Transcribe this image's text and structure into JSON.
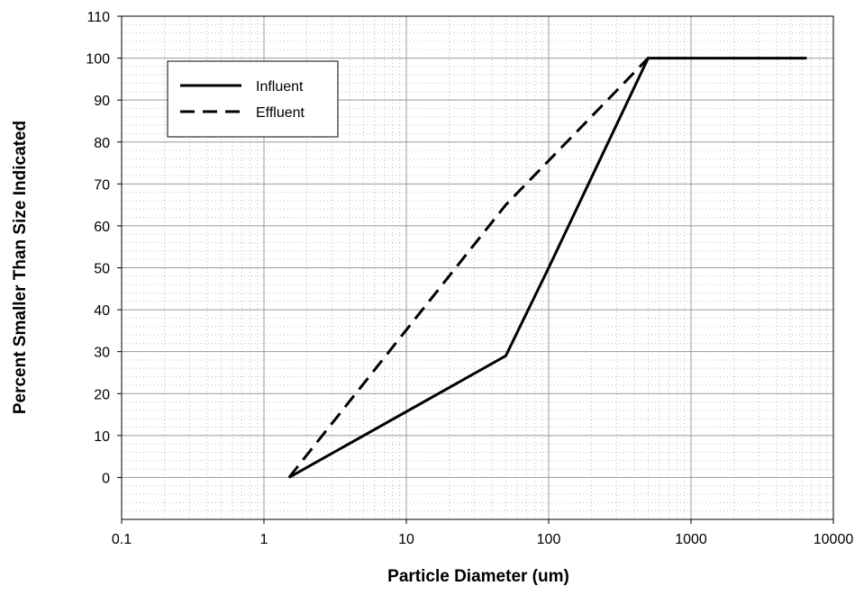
{
  "chart_data": {
    "type": "line",
    "title": "",
    "xlabel": "Particle Diameter (um)",
    "ylabel": "Percent Smaller Than Size Indicated",
    "x_scale": "log",
    "xlim": [
      0.1,
      10000
    ],
    "ylim": [
      -10,
      110
    ],
    "x_ticks": [
      0.1,
      1,
      10,
      100,
      1000,
      10000
    ],
    "x_tick_labels": [
      "0.1",
      "1",
      "10",
      "100",
      "1000",
      "10000"
    ],
    "y_ticks": [
      0,
      10,
      20,
      30,
      40,
      50,
      60,
      70,
      80,
      90,
      100,
      110
    ],
    "y_tick_labels": [
      "0",
      "10",
      "20",
      "30",
      "40",
      "50",
      "60",
      "70",
      "80",
      "90",
      "100",
      "110"
    ],
    "grid": {
      "major": true,
      "minor_x": true,
      "minor_y": true
    },
    "legend_position": "top-left",
    "series": [
      {
        "name": "Influent",
        "style": "solid",
        "color": "#000000",
        "x": [
          1.5,
          50,
          100,
          500,
          6500
        ],
        "y": [
          0,
          29,
          50,
          100,
          100
        ]
      },
      {
        "name": "Effluent",
        "style": "dashed",
        "color": "#000000",
        "x": [
          1.5,
          50,
          500
        ],
        "y": [
          0,
          65,
          100
        ]
      }
    ]
  }
}
